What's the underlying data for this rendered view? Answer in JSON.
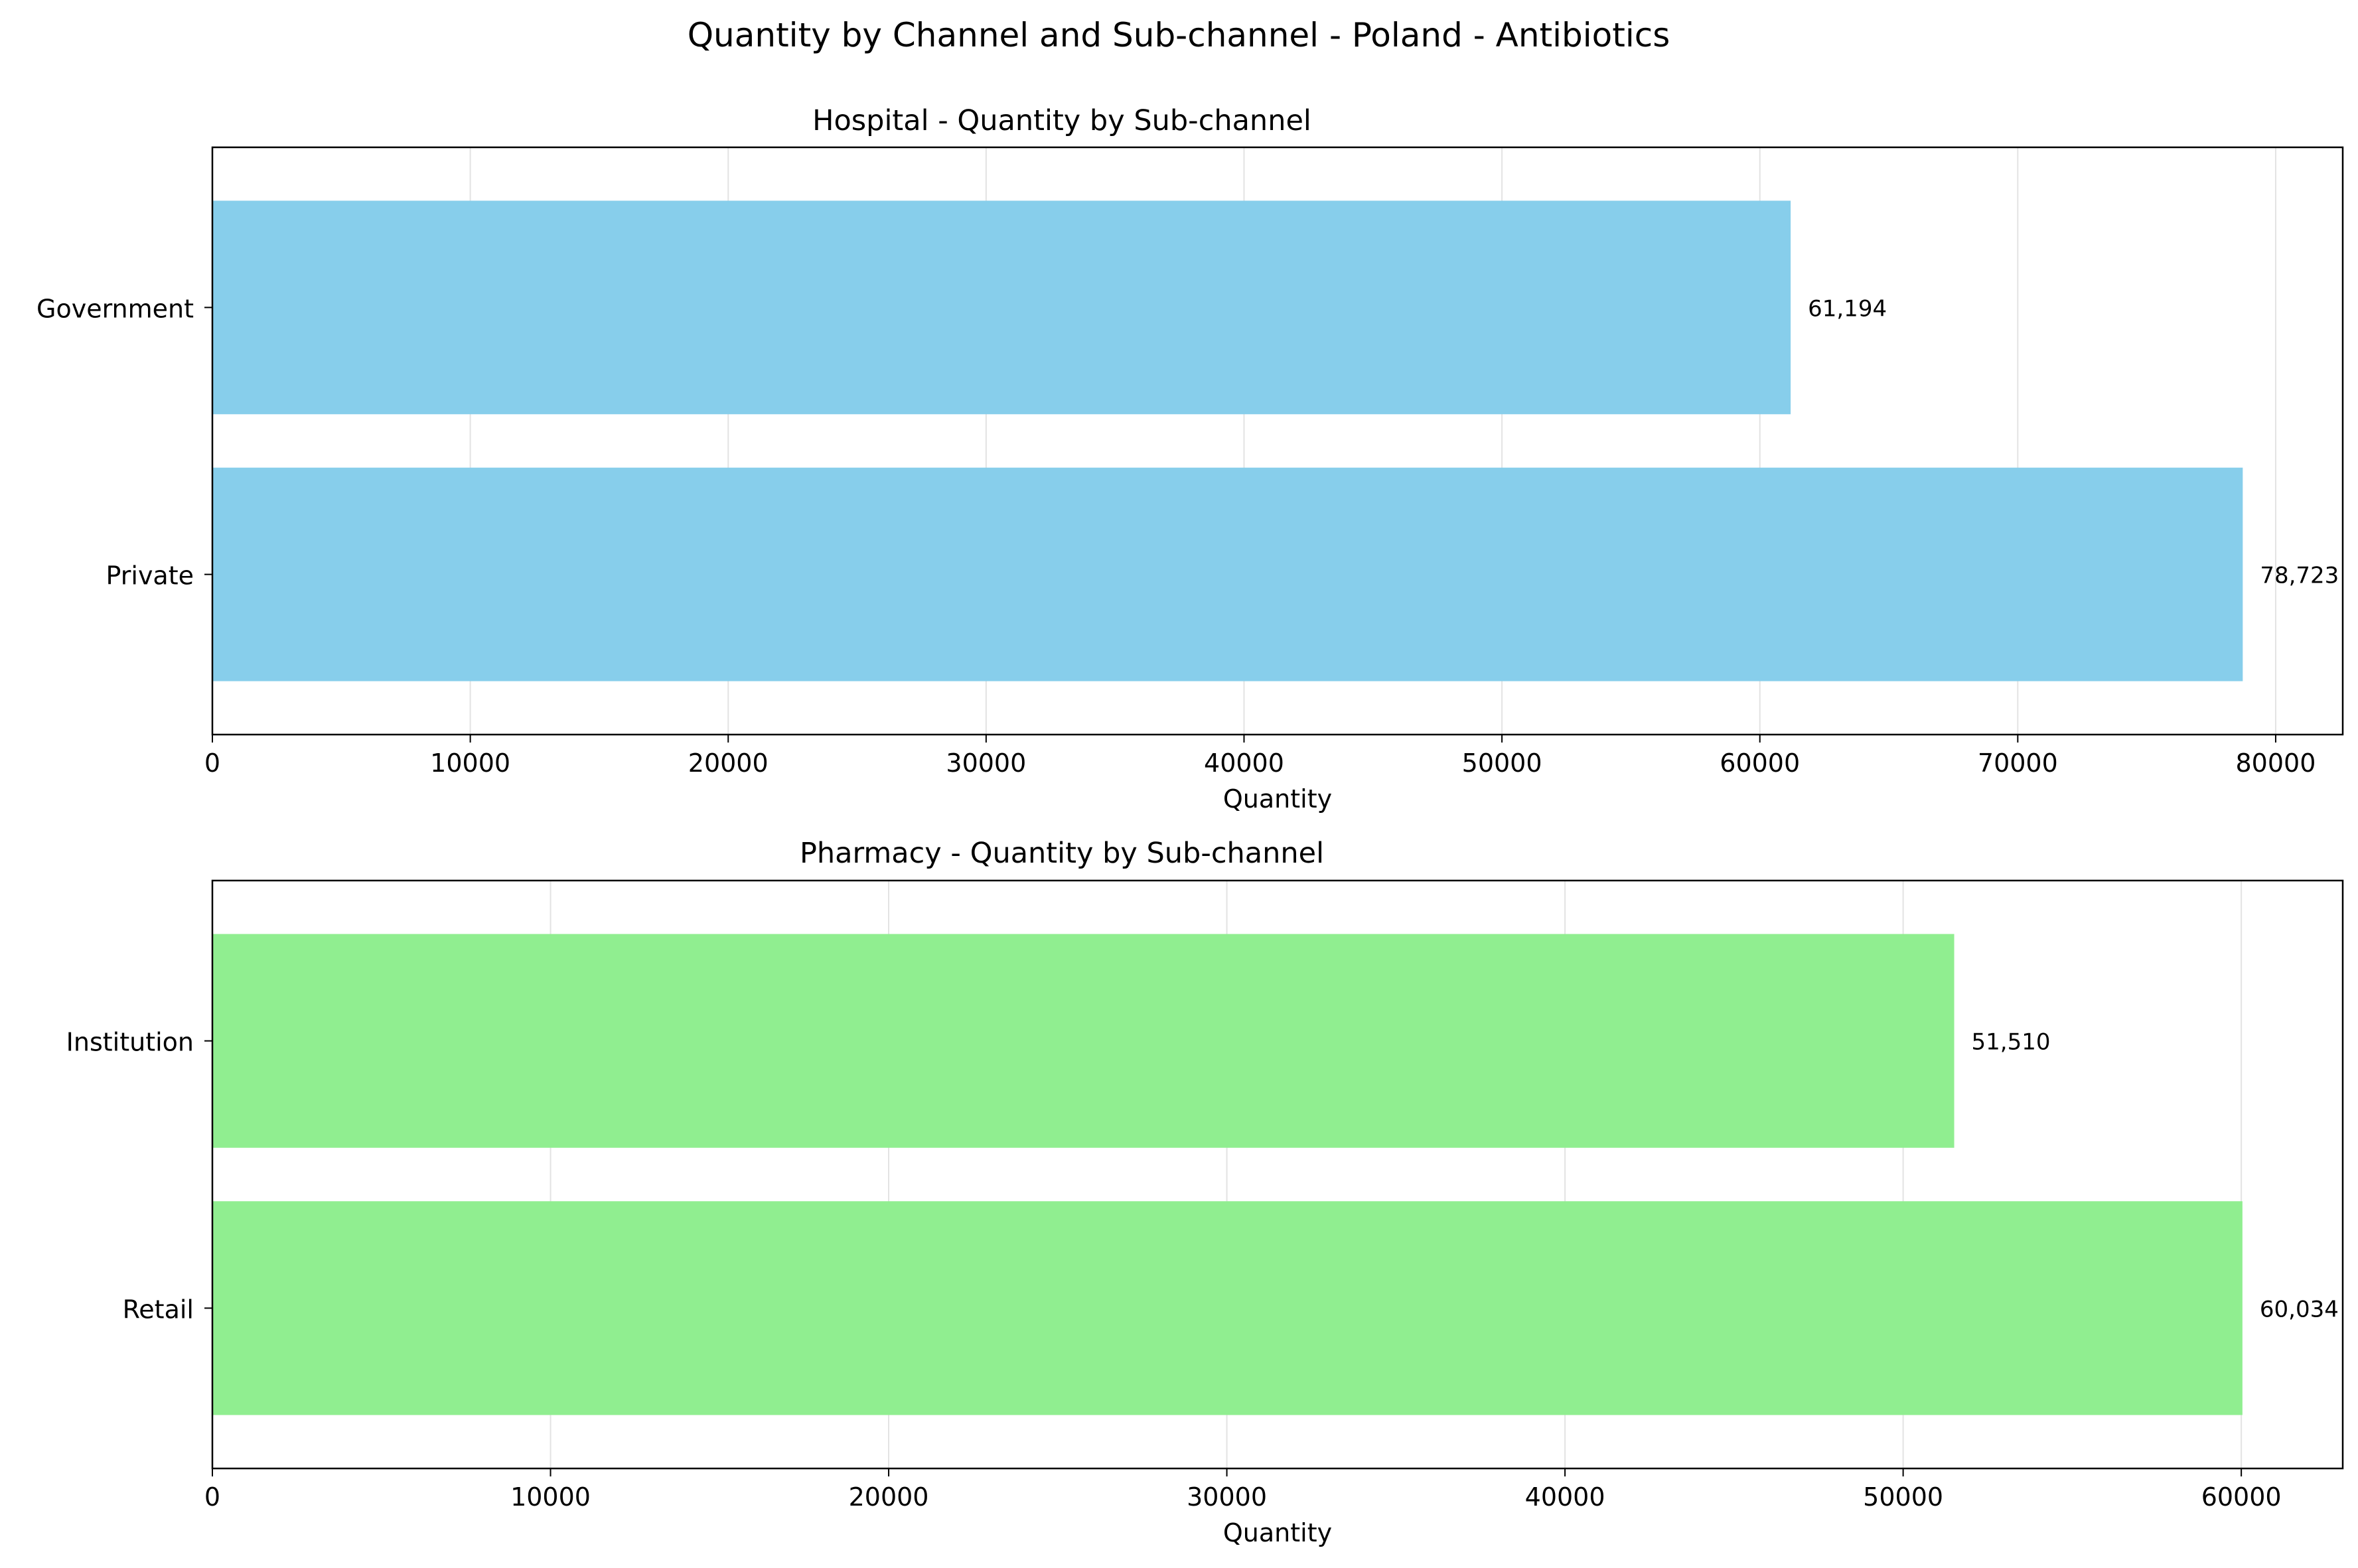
{
  "suptitle": "Quantity by Channel and Sub-channel - Poland - Antibiotics",
  "chart_data": [
    {
      "type": "bar",
      "orientation": "horizontal",
      "title": "Hospital - Quantity by Sub-channel",
      "xlabel": "Quantity",
      "ylabel": "",
      "categories": [
        "Government",
        "Private"
      ],
      "values": [
        61194,
        78723
      ],
      "value_labels": [
        "61,194",
        "78,723"
      ],
      "bar_color": "#87ceeb",
      "xlim": [
        0,
        82600
      ],
      "xticks": [
        0,
        10000,
        20000,
        30000,
        40000,
        50000,
        60000,
        70000,
        80000
      ],
      "xtick_labels": [
        "0",
        "10000",
        "20000",
        "30000",
        "40000",
        "50000",
        "60000",
        "70000",
        "80000"
      ],
      "grid": "x"
    },
    {
      "type": "bar",
      "orientation": "horizontal",
      "title": "Pharmacy - Quantity by Sub-channel",
      "xlabel": "Quantity",
      "ylabel": "",
      "categories": [
        "Institution",
        "Retail"
      ],
      "values": [
        51510,
        60034
      ],
      "value_labels": [
        "51,510",
        "60,034"
      ],
      "bar_color": "#90ee90",
      "xlim": [
        0,
        63000
      ],
      "xticks": [
        0,
        10000,
        20000,
        30000,
        40000,
        50000,
        60000
      ],
      "xtick_labels": [
        "0",
        "10000",
        "20000",
        "30000",
        "40000",
        "50000",
        "60000"
      ],
      "grid": "x"
    }
  ]
}
